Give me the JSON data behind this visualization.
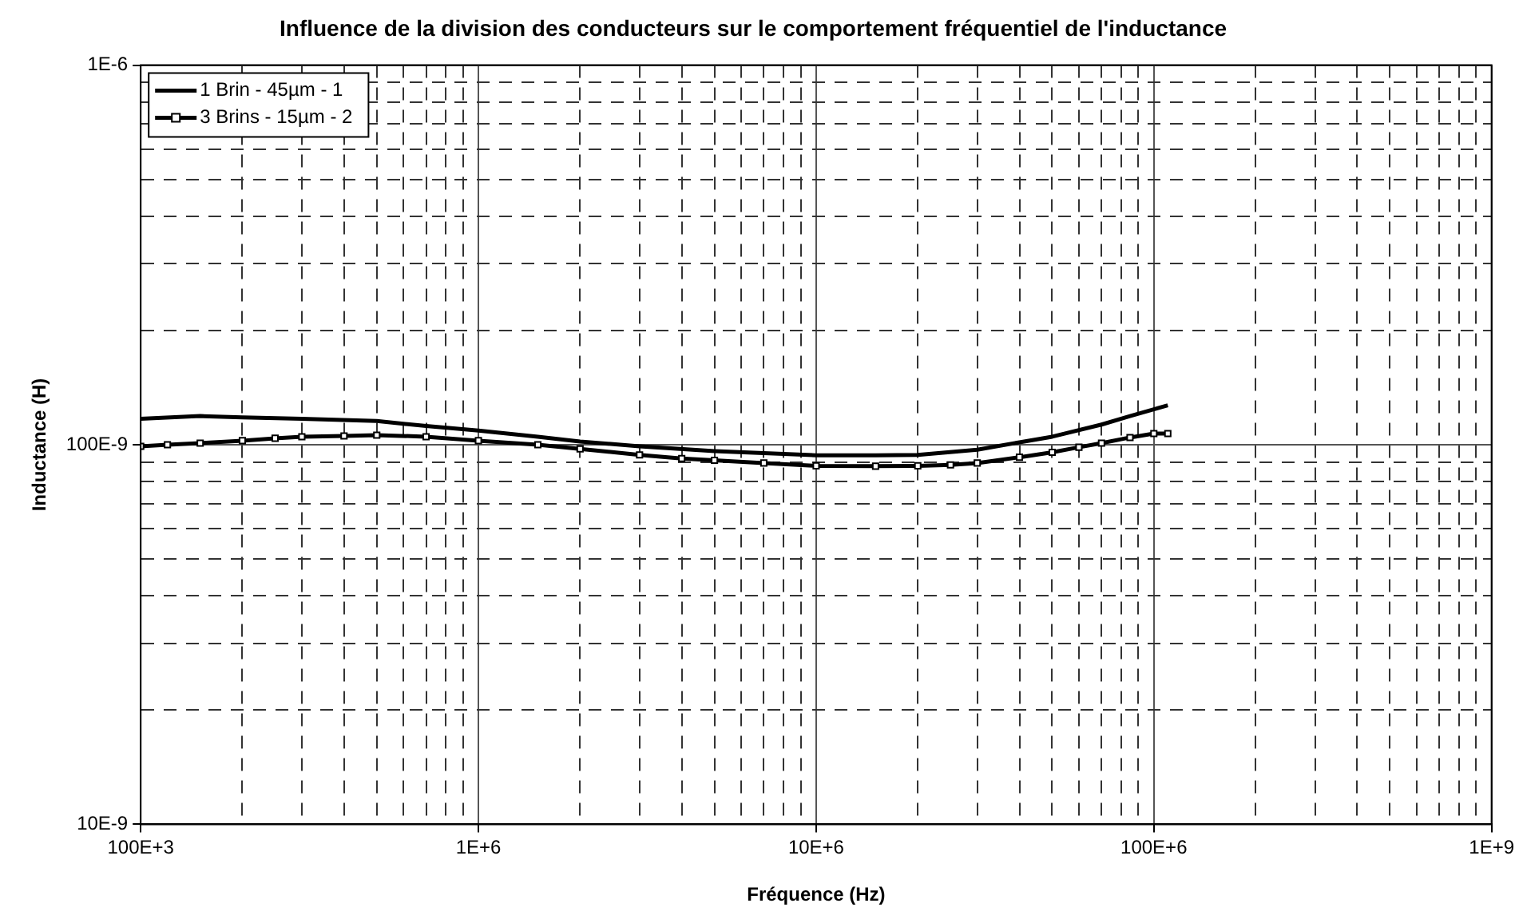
{
  "chart_data": {
    "type": "line",
    "title": "Influence de la division des conducteurs sur le comportement fréquentiel de l'inductance",
    "xlabel": "Fréquence (Hz)",
    "ylabel": "Inductance (H)",
    "log": "xy",
    "grid": true,
    "legend": "top left",
    "xlim": [
      100000,
      1000000000
    ],
    "xticks": [
      {
        "value": 100000,
        "label": "100E+3"
      },
      {
        "value": 200000,
        "label": null
      },
      {
        "value": 300000,
        "label": null
      },
      {
        "value": 400000,
        "label": null
      },
      {
        "value": 500000,
        "label": null
      },
      {
        "value": 600000,
        "label": null
      },
      {
        "value": 700000,
        "label": null
      },
      {
        "value": 800000,
        "label": null
      },
      {
        "value": 900000,
        "label": null
      },
      {
        "value": 1000000,
        "label": "1E+6"
      },
      {
        "value": 2000000,
        "label": null
      },
      {
        "value": 3000000,
        "label": null
      },
      {
        "value": 4000000,
        "label": null
      },
      {
        "value": 5000000,
        "label": null
      },
      {
        "value": 6000000,
        "label": null
      },
      {
        "value": 7000000,
        "label": null
      },
      {
        "value": 8000000,
        "label": null
      },
      {
        "value": 9000000,
        "label": null
      },
      {
        "value": 10000000,
        "label": "10E+6"
      },
      {
        "value": 20000000,
        "label": null
      },
      {
        "value": 30000000,
        "label": null
      },
      {
        "value": 40000000,
        "label": null
      },
      {
        "value": 50000000,
        "label": null
      },
      {
        "value": 60000000,
        "label": null
      },
      {
        "value": 70000000,
        "label": null
      },
      {
        "value": 80000000,
        "label": null
      },
      {
        "value": 90000000,
        "label": null
      },
      {
        "value": 100000000,
        "label": "100E+6"
      },
      {
        "value": 200000000,
        "label": null
      },
      {
        "value": 300000000,
        "label": null
      },
      {
        "value": 400000000,
        "label": null
      },
      {
        "value": 500000000,
        "label": null
      },
      {
        "value": 600000000,
        "label": null
      },
      {
        "value": 700000000,
        "label": null
      },
      {
        "value": 800000000,
        "label": null
      },
      {
        "value": 900000000,
        "label": null
      },
      {
        "value": 1000000000,
        "label": "1E+9"
      }
    ],
    "ylim": [
      1e-08,
      1e-06
    ],
    "yticks": [
      {
        "value": 1e-08,
        "label": "10E-9"
      },
      {
        "value": 2e-08,
        "label": null
      },
      {
        "value": 3e-08,
        "label": null
      },
      {
        "value": 4e-08,
        "label": null
      },
      {
        "value": 5e-08,
        "label": null
      },
      {
        "value": 6e-08,
        "label": null
      },
      {
        "value": 7e-08,
        "label": null
      },
      {
        "value": 8e-08,
        "label": null
      },
      {
        "value": 9e-08,
        "label": null
      },
      {
        "value": 1e-07,
        "label": "100E-9"
      },
      {
        "value": 2e-07,
        "label": null
      },
      {
        "value": 3e-07,
        "label": null
      },
      {
        "value": 4e-07,
        "label": null
      },
      {
        "value": 5e-07,
        "label": null
      },
      {
        "value": 6e-07,
        "label": null
      },
      {
        "value": 7e-07,
        "label": null
      },
      {
        "value": 8e-07,
        "label": null
      },
      {
        "value": 9e-07,
        "label": null
      },
      {
        "value": 1e-06,
        "label": "1E-6"
      }
    ],
    "series": [
      {
        "name": "1 Brin - 45µm - 1",
        "color": "#000000",
        "marker": "none",
        "x": [
          100000,
          150000,
          200000,
          300000,
          500000,
          700000,
          1000000,
          1500000,
          2000000,
          3000000,
          5000000,
          7000000,
          10000000,
          15000000,
          20000000,
          30000000,
          40000000,
          50000000,
          70000000,
          85000000,
          100000000,
          110000000
        ],
        "values": [
          1.17e-07,
          1.19e-07,
          1.18e-07,
          1.17e-07,
          1.155e-07,
          1.12e-07,
          1.09e-07,
          1.05e-07,
          1.02e-07,
          9.9e-08,
          9.62e-08,
          9.5e-08,
          9.38e-08,
          9.38e-08,
          9.4e-08,
          9.7e-08,
          1.015e-07,
          1.05e-07,
          1.13e-07,
          1.19e-07,
          1.24e-07,
          1.27e-07
        ]
      },
      {
        "name": "3 Brins - 15µm - 2",
        "color": "#000000",
        "marker": "square",
        "x": [
          100000,
          120000,
          150000,
          200000,
          250000,
          300000,
          400000,
          500000,
          700000,
          1000000,
          1500000,
          2000000,
          3000000,
          4000000,
          5000000,
          7000000,
          10000000,
          15000000,
          20000000,
          25000000,
          30000000,
          40000000,
          50000000,
          60000000,
          70000000,
          85000000,
          100000000,
          110000000
        ],
        "values": [
          9.9e-08,
          1e-07,
          1.01e-07,
          1.025e-07,
          1.04e-07,
          1.05e-07,
          1.055e-07,
          1.06e-07,
          1.05e-07,
          1.025e-07,
          1e-07,
          9.75e-08,
          9.4e-08,
          9.2e-08,
          9.1e-08,
          8.95e-08,
          8.8e-08,
          8.78e-08,
          8.8e-08,
          8.85e-08,
          8.95e-08,
          9.27e-08,
          9.55e-08,
          9.85e-08,
          1.01e-07,
          1.045e-07,
          1.07e-07,
          1.07e-07
        ]
      }
    ]
  }
}
